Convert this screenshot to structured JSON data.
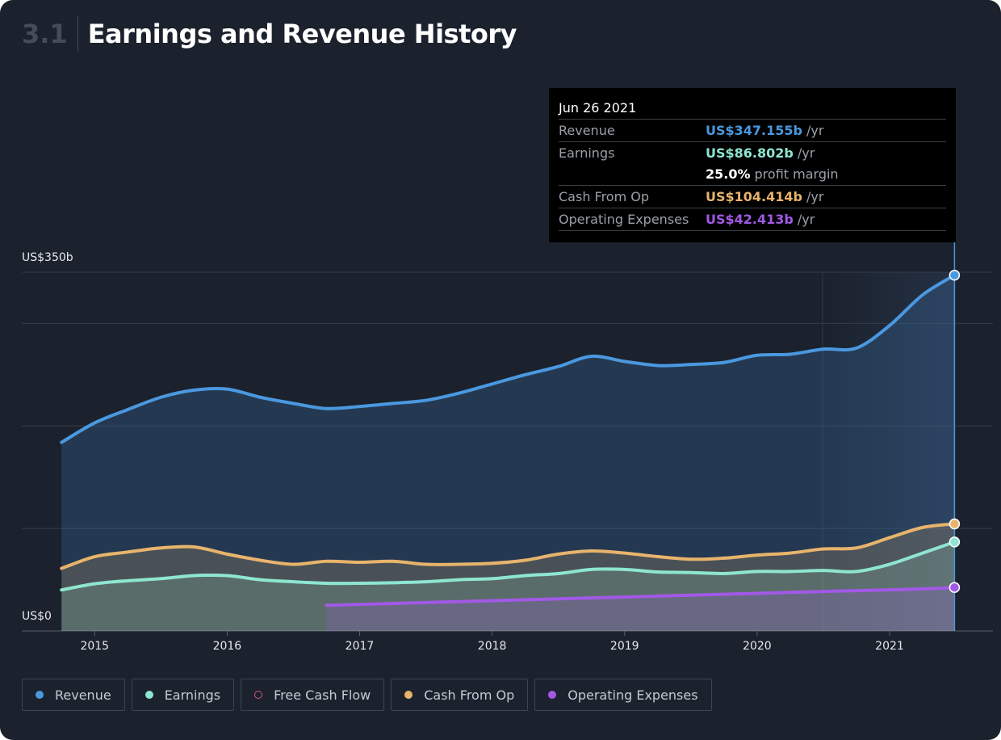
{
  "chart_data": {
    "type": "area",
    "section": "3.1",
    "title": "Earnings and Revenue History",
    "x": [
      2014.75,
      2015,
      2015.25,
      2015.5,
      2015.75,
      2016,
      2016.25,
      2016.5,
      2016.75,
      2017,
      2017.25,
      2017.5,
      2017.75,
      2018,
      2018.25,
      2018.5,
      2018.75,
      2019,
      2019.25,
      2019.5,
      2019.75,
      2020,
      2020.25,
      2020.5,
      2020.75,
      2021,
      2021.25,
      2021.49
    ],
    "xlim": [
      2014.45,
      2021.78
    ],
    "xticks": [
      2015,
      2016,
      2017,
      2018,
      2019,
      2020,
      2021
    ],
    "ylim": [
      0,
      350
    ],
    "yticks": [
      {
        "value": 0,
        "label": "US$0"
      },
      {
        "value": 100,
        "label": null
      },
      {
        "value": 200,
        "label": null
      },
      {
        "value": 300,
        "label": null
      },
      {
        "value": 350,
        "label": "US$350b"
      }
    ],
    "grid": true,
    "series": [
      {
        "name": "Revenue",
        "color": "#4a98e0",
        "visible": true,
        "values": [
          184,
          203,
          216,
          228,
          235,
          236,
          228,
          222,
          217,
          219,
          222,
          225,
          232,
          241,
          250,
          258,
          268,
          263,
          259,
          260,
          262,
          269,
          270,
          275,
          276,
          298,
          328,
          347.155
        ]
      },
      {
        "name": "Earnings",
        "color": "#8ee6d0",
        "visible": true,
        "values": [
          40,
          46,
          49,
          51,
          54,
          54,
          50,
          48,
          46.5,
          46.5,
          47,
          48,
          50,
          51,
          54,
          56,
          60,
          60,
          57.5,
          57,
          56,
          58,
          58,
          59,
          58,
          65,
          76,
          86.802
        ]
      },
      {
        "name": "Free Cash Flow",
        "color": "#d0577a",
        "visible": false,
        "values": [
          null,
          null,
          null,
          null,
          null,
          null,
          null,
          null,
          null,
          null,
          null,
          null,
          null,
          null,
          null,
          null,
          null,
          null,
          null,
          null,
          null,
          null,
          null,
          null,
          null,
          null,
          null,
          null
        ]
      },
      {
        "name": "Cash From Op",
        "color": "#e8b46c",
        "visible": true,
        "values": [
          61,
          72.5,
          77,
          81,
          82,
          75,
          69,
          65,
          68,
          67,
          68,
          65,
          65,
          66,
          69,
          75,
          78,
          76,
          72.5,
          70,
          71,
          74,
          76,
          80,
          81,
          91,
          101,
          104.414
        ]
      },
      {
        "name": "Operating Expenses",
        "color": "#a259e6",
        "visible": true,
        "values": [
          null,
          null,
          null,
          null,
          null,
          null,
          null,
          null,
          25,
          25.9,
          26.8,
          27.7,
          28.6,
          29.5,
          30.4,
          31.3,
          32.2,
          33.1,
          34,
          34.9,
          35.8,
          36.7,
          37.6,
          38.5,
          39.3,
          40.1,
          41,
          42.413
        ]
      }
    ],
    "tooltip": {
      "date": "Jun 26 2021",
      "rows": [
        {
          "label": "Revenue",
          "value": "US$347.155b",
          "suffix": "/yr",
          "color": "#4a98e0"
        },
        {
          "label": "Earnings",
          "value": "US$86.802b",
          "suffix": "/yr",
          "color": "#8ee6d0"
        },
        {
          "label": null,
          "value": "25.0%",
          "suffix": "profit margin",
          "color": "#ffffff"
        },
        {
          "label": "Cash From Op",
          "value": "US$104.414b",
          "suffix": "/yr",
          "color": "#e8b46c"
        },
        {
          "label": "Operating Expenses",
          "value": "US$42.413b",
          "suffix": "/yr",
          "color": "#a259e6"
        }
      ]
    }
  }
}
